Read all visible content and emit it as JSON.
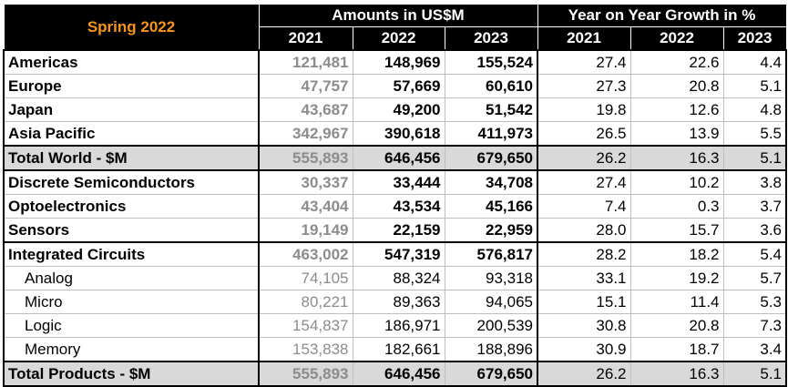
{
  "header": {
    "title": "Spring 2022",
    "group_amounts": "Amounts in US$M",
    "group_growth": "Year on Year Growth in %",
    "years": [
      "2021",
      "2022",
      "2023",
      "2021",
      "2022",
      "2023"
    ]
  },
  "rows": [
    {
      "label": "Americas",
      "a2021": "121,481",
      "a2022": "148,969",
      "a2023": "155,524",
      "g2021": "27.4",
      "g2022": "22.6",
      "g2023": "4.4"
    },
    {
      "label": "Europe",
      "a2021": "47,757",
      "a2022": "57,669",
      "a2023": "60,610",
      "g2021": "27.3",
      "g2022": "20.8",
      "g2023": "5.1"
    },
    {
      "label": "Japan",
      "a2021": "43,687",
      "a2022": "49,200",
      "a2023": "51,542",
      "g2021": "19.8",
      "g2022": "12.6",
      "g2023": "4.8"
    },
    {
      "label": "Asia Pacific",
      "a2021": "342,967",
      "a2022": "390,618",
      "a2023": "411,973",
      "g2021": "26.5",
      "g2022": "13.9",
      "g2023": "5.5"
    },
    {
      "label": "Total World - $M",
      "a2021": "555,893",
      "a2022": "646,456",
      "a2023": "679,650",
      "g2021": "26.2",
      "g2022": "16.3",
      "g2023": "5.1"
    },
    {
      "label": "Discrete Semiconductors",
      "a2021": "30,337",
      "a2022": "33,444",
      "a2023": "34,708",
      "g2021": "27.4",
      "g2022": "10.2",
      "g2023": "3.8"
    },
    {
      "label": "Optoelectronics",
      "a2021": "43,404",
      "a2022": "43,534",
      "a2023": "45,166",
      "g2021": "7.4",
      "g2022": "0.3",
      "g2023": "3.7"
    },
    {
      "label": "Sensors",
      "a2021": "19,149",
      "a2022": "22,159",
      "a2023": "22,959",
      "g2021": "28.0",
      "g2022": "15.7",
      "g2023": "3.6"
    },
    {
      "label": "Integrated Circuits",
      "a2021": "463,002",
      "a2022": "547,319",
      "a2023": "576,817",
      "g2021": "28.2",
      "g2022": "18.2",
      "g2023": "5.4"
    },
    {
      "label": "Analog",
      "a2021": "74,105",
      "a2022": "88,324",
      "a2023": "93,318",
      "g2021": "33.1",
      "g2022": "19.2",
      "g2023": "5.7"
    },
    {
      "label": "Micro",
      "a2021": "80,221",
      "a2022": "89,363",
      "a2023": "94,065",
      "g2021": "15.1",
      "g2022": "11.4",
      "g2023": "5.3"
    },
    {
      "label": "Logic",
      "a2021": "154,837",
      "a2022": "186,971",
      "a2023": "200,539",
      "g2021": "30.8",
      "g2022": "20.8",
      "g2023": "7.3"
    },
    {
      "label": "Memory",
      "a2021": "153,838",
      "a2022": "182,661",
      "a2023": "188,896",
      "g2021": "30.9",
      "g2022": "18.7",
      "g2023": "3.4"
    },
    {
      "label": "Total Products - $M",
      "a2021": "555,893",
      "a2022": "646,456",
      "a2023": "679,650",
      "g2021": "26.2",
      "g2022": "16.3",
      "g2023": "5.1"
    }
  ]
}
